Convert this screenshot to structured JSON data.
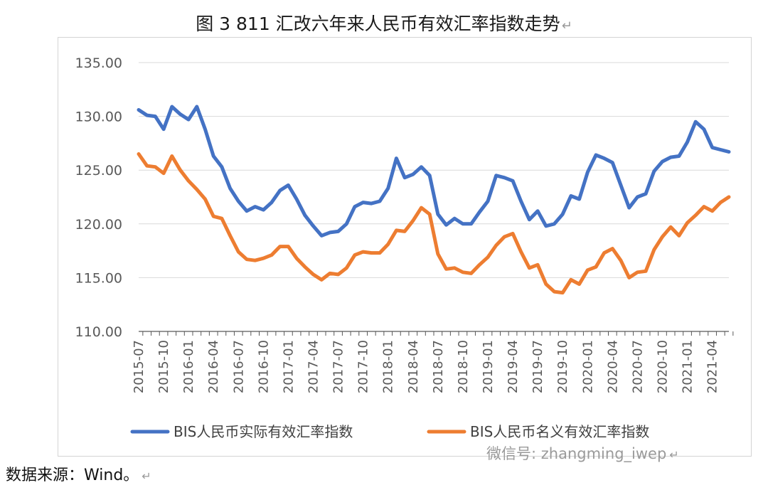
{
  "title": "图 3   811 汇改六年来人民币有效汇率指数走势",
  "return_mark": "↵",
  "source_text": "数据来源：Wind。",
  "watermark": "微信号: zhangming_iwep",
  "colors": {
    "real": "#4472C4",
    "nominal": "#ED7D31",
    "grid": "#d9d9d9",
    "axis": "#595959"
  },
  "chart_data": {
    "type": "line",
    "title": "811 汇改六年来人民币有效汇率指数走势",
    "xlabel": "",
    "ylabel": "",
    "ylim": [
      110,
      135
    ],
    "yticks": [
      110,
      115,
      120,
      125,
      130,
      135
    ],
    "ytick_labels": [
      "110.00",
      "115.00",
      "120.00",
      "125.00",
      "130.00",
      "135.00"
    ],
    "x_tick_labels": [
      "2015-07",
      "2015-10",
      "2016-01",
      "2016-04",
      "2016-07",
      "2016-10",
      "2017-01",
      "2017-04",
      "2017-07",
      "2017-10",
      "2018-01",
      "2018-04",
      "2018-07",
      "2018-10",
      "2019-01",
      "2019-04",
      "2019-07",
      "2019-10",
      "2020-01",
      "2020-04",
      "2020-07",
      "2020-10",
      "2021-01",
      "2021-04"
    ],
    "legend_position": "bottom",
    "series": [
      {
        "name": "BIS人民币实际有效汇率指数",
        "color": "#4472C4",
        "values": [
          130.6,
          130.1,
          130.0,
          128.8,
          130.9,
          130.2,
          129.7,
          130.9,
          128.8,
          126.3,
          125.3,
          123.3,
          122.1,
          121.2,
          121.6,
          121.3,
          122.0,
          123.1,
          123.6,
          122.3,
          120.8,
          119.8,
          118.9,
          119.2,
          119.3,
          120.0,
          121.6,
          122.0,
          121.9,
          122.1,
          123.3,
          126.1,
          124.3,
          124.6,
          125.3,
          124.5,
          120.9,
          119.9,
          120.5,
          120.0,
          120.0,
          121.1,
          122.1,
          124.5,
          124.3,
          124.0,
          122.1,
          120.4,
          121.2,
          119.8,
          120.0,
          120.9,
          122.6,
          122.3,
          124.8,
          126.4,
          126.1,
          125.7,
          123.6,
          121.5,
          122.5,
          122.8,
          124.9,
          125.8,
          126.2,
          126.3,
          127.6,
          129.5,
          128.8,
          127.1,
          126.9,
          126.7
        ]
      },
      {
        "name": "BIS人民币名义有效汇率指数",
        "color": "#ED7D31",
        "values": [
          126.5,
          125.4,
          125.3,
          124.7,
          126.3,
          125.0,
          124.0,
          123.2,
          122.3,
          120.7,
          120.5,
          118.9,
          117.4,
          116.7,
          116.6,
          116.8,
          117.1,
          117.9,
          117.9,
          116.8,
          116.0,
          115.3,
          114.8,
          115.4,
          115.3,
          115.9,
          117.1,
          117.4,
          117.3,
          117.3,
          118.1,
          119.4,
          119.3,
          120.3,
          121.5,
          120.9,
          117.2,
          115.8,
          115.9,
          115.5,
          115.4,
          116.2,
          116.9,
          118.0,
          118.8,
          119.1,
          117.4,
          115.9,
          116.2,
          114.4,
          113.7,
          113.6,
          114.8,
          114.4,
          115.7,
          116.0,
          117.3,
          117.7,
          116.6,
          115.0,
          115.5,
          115.6,
          117.6,
          118.8,
          119.7,
          118.9,
          120.1,
          120.8,
          121.6,
          121.2,
          122.0,
          122.5
        ]
      }
    ]
  }
}
